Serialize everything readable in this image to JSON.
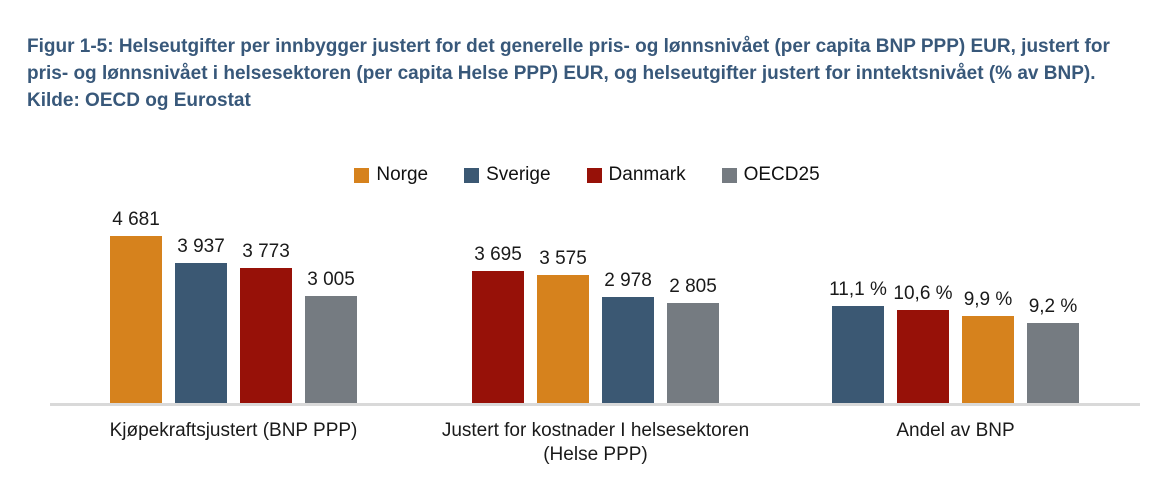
{
  "title": "Figur 1-5: Helseutgifter per innbygger justert for det generelle pris- og lønnsnivået (per capita BNP PPP) EUR, justert for pris- og lønnsnivået i helsesektoren (per capita Helse PPP) EUR, og helseutgifter justert for inntektsnivået (% av BNP). Kilde: OECD og Eurostat",
  "colors": {
    "series": {
      "Norge": "#d6821d",
      "Sverige": "#3b5873",
      "Danmark": "#971108",
      "OECD25": "#757b81"
    },
    "axis_line": "#d9d9d9",
    "title_text": "#38587a",
    "label_text": "#1a1a1a",
    "background": "#ffffff"
  },
  "chart_data": {
    "type": "bar",
    "title": "Figur 1-5: Helseutgifter per innbygger justert for det generelle pris- og lønnsnivået (per capita BNP PPP) EUR, justert for pris- og lønnsnivået i helsesektoren (per capita Helse PPP) EUR, og helseutgifter justert for inntektsnivået (% av BNP). Kilde: OECD og Eurostat",
    "legend": [
      "Norge",
      "Sverige",
      "Danmark",
      "OECD25"
    ],
    "legend_position": "top-center",
    "grid": false,
    "y_axis_visible": false,
    "value_labels_visible": true,
    "groups": [
      {
        "category": "Kjøpekraftsjustert (BNP PPP)",
        "category_lines": [
          "Kjøpekraftsjustert (BNP PPP)"
        ],
        "unit": "EUR",
        "bars": [
          {
            "series": "Norge",
            "value": 4681,
            "label": "4 681"
          },
          {
            "series": "Sverige",
            "value": 3937,
            "label": "3 937"
          },
          {
            "series": "Danmark",
            "value": 3773,
            "label": "3 773"
          },
          {
            "series": "OECD25",
            "value": 3005,
            "label": "3 005"
          }
        ]
      },
      {
        "category": "Justert for kostnader I helsesektoren (Helse PPP)",
        "category_lines": [
          "Justert for kostnader I helsesektoren",
          "(Helse PPP)"
        ],
        "unit": "EUR",
        "bars": [
          {
            "series": "Danmark",
            "value": 3695,
            "label": "3 695"
          },
          {
            "series": "Norge",
            "value": 3575,
            "label": "3 575"
          },
          {
            "series": "Sverige",
            "value": 2978,
            "label": "2 978"
          },
          {
            "series": "OECD25",
            "value": 2805,
            "label": "2 805"
          }
        ]
      },
      {
        "category": "Andel av BNP",
        "category_lines": [
          "Andel av BNP"
        ],
        "unit": "percent",
        "bars": [
          {
            "series": "Sverige",
            "value": 11.1,
            "label": "11,1 %"
          },
          {
            "series": "Danmark",
            "value": 10.6,
            "label": "10,6 %"
          },
          {
            "series": "Norge",
            "value": 9.9,
            "label": "9,9 %"
          },
          {
            "series": "OECD25",
            "value": 9.2,
            "label": "9,2 %"
          }
        ]
      }
    ]
  }
}
